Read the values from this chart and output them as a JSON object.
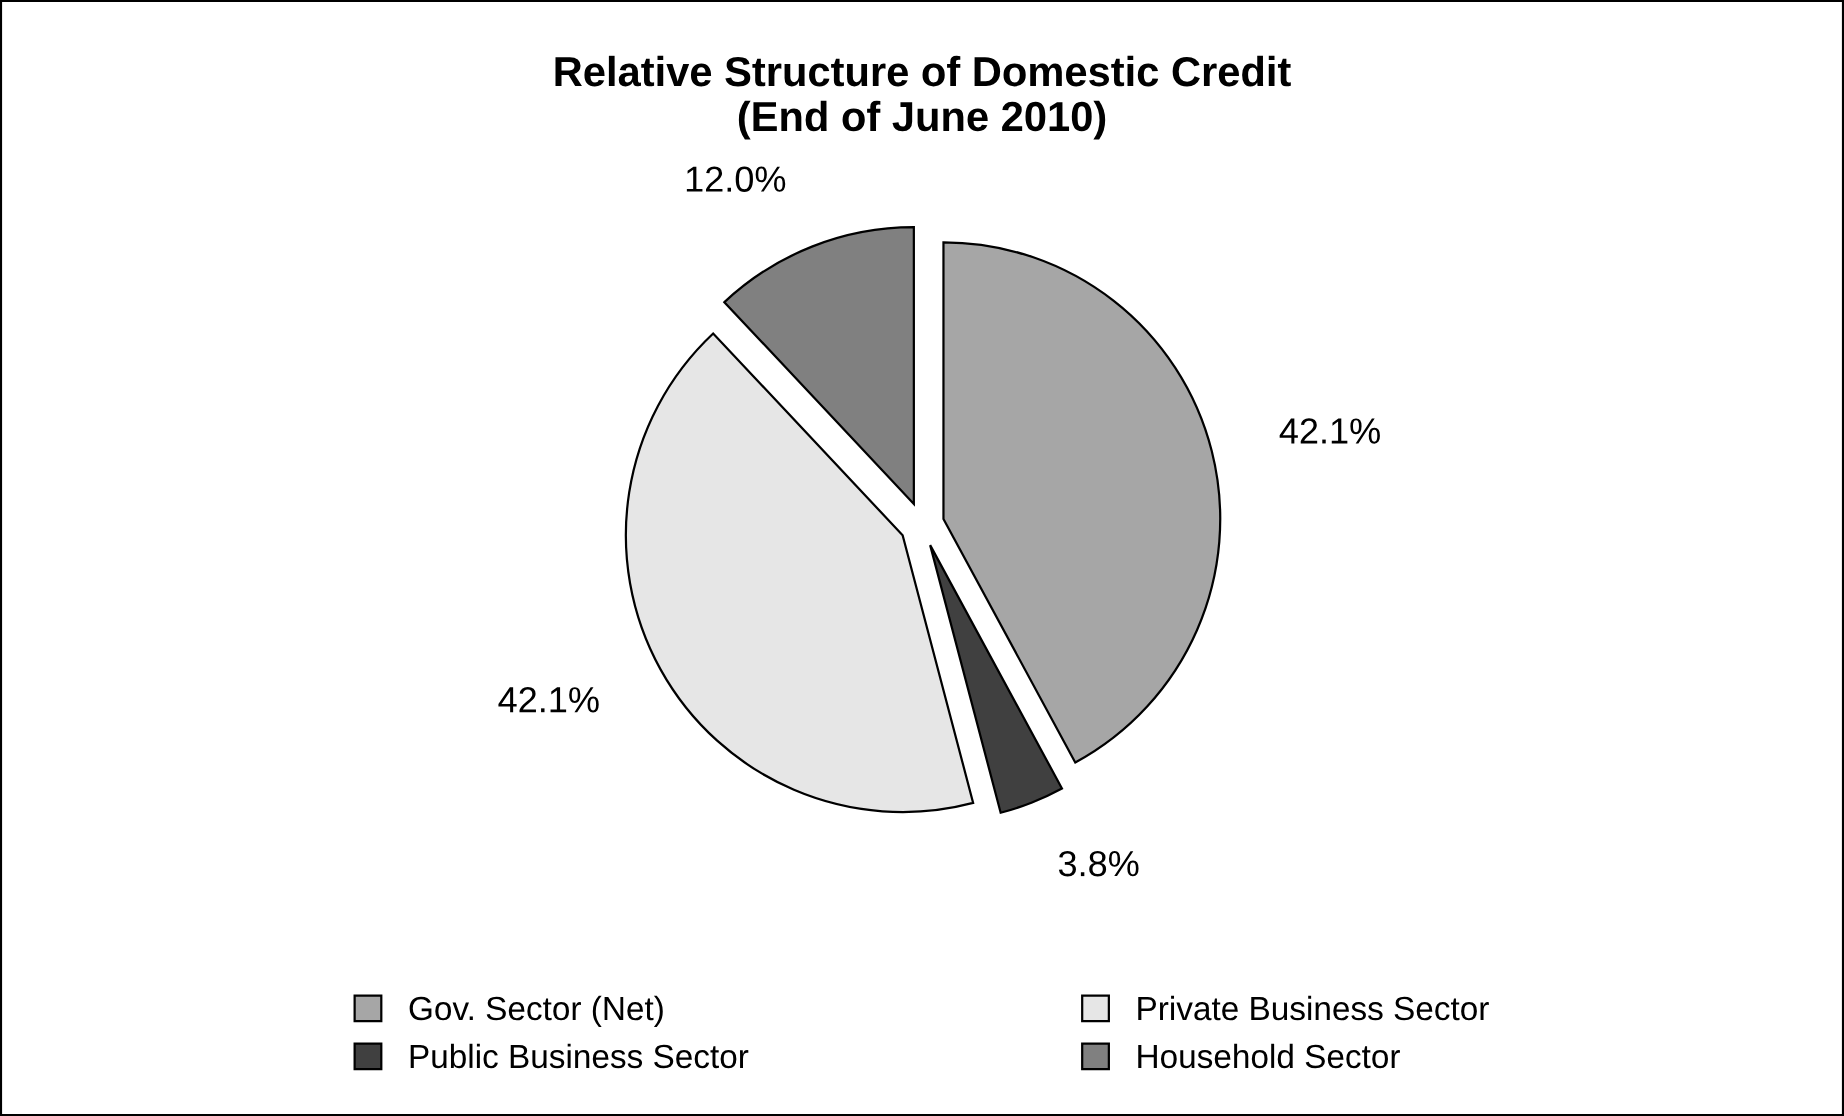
{
  "chart_data": {
    "type": "pie",
    "title": "Relative Structure of Domestic Credit\n(End of June 2010)",
    "categories": [
      "Gov. Sector (Net)",
      "Public Business Sector",
      "Private Business Sector",
      "Household Sector"
    ],
    "values": [
      42.1,
      3.8,
      42.1,
      12.0
    ],
    "colors": [
      "#a6a6a6",
      "#404040",
      "#e6e6e6",
      "#808080"
    ],
    "value_labels": [
      "42.1%",
      "3.8%",
      "42.1%",
      "12.0%"
    ],
    "legend": "bottom"
  }
}
